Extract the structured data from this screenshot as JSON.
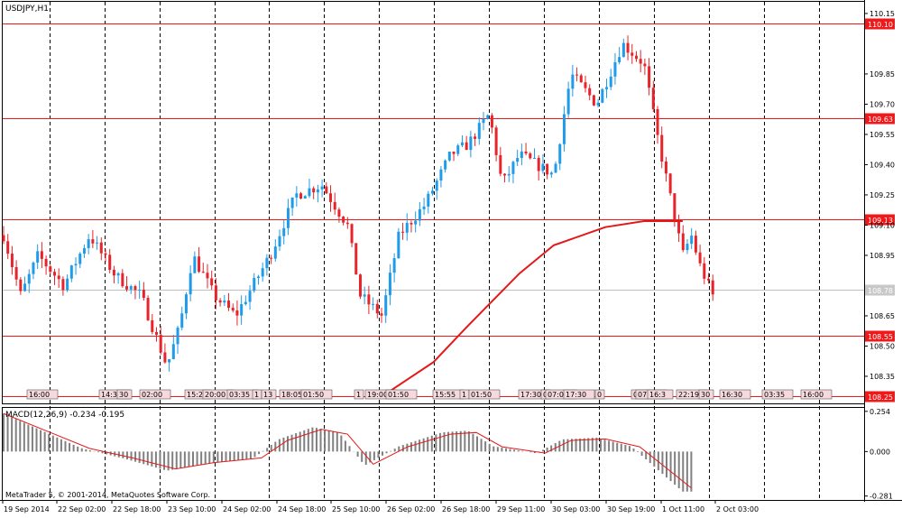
{
  "symbol_label": "USDJPY,H1",
  "macd_label": "MACD(12,26,9) -0.234 -0.195",
  "copyright": "MetaTrader 5, © 2001-2014, MetaQuotes Software Corp.",
  "price_axis": {
    "ticks": [
      "110.15",
      "109.85",
      "109.70",
      "109.55",
      "109.40",
      "109.25",
      "109.10",
      "108.95",
      "108.65",
      "108.50",
      "108.35"
    ]
  },
  "macd_axis": {
    "ticks": [
      "0.254",
      "0.000",
      "-0.281"
    ]
  },
  "time_axis": {
    "labels": [
      "19 Sep 2014",
      "22 Sep 02:00",
      "22 Sep 18:00",
      "23 Sep 10:00",
      "24 Sep 02:00",
      "24 Sep 18:00",
      "25 Sep 10:00",
      "26 Sep 02:00",
      "26 Sep 18:00",
      "29 Sep 11:00",
      "30 Sep 03:00",
      "30 Sep 19:00",
      "1 Oct 11:00",
      "2 Oct 03:00"
    ]
  },
  "horizontal_levels": [
    {
      "label": "110.10",
      "value": 110.1
    },
    {
      "label": "109.63",
      "value": 109.63
    },
    {
      "label": "109.13",
      "value": 109.13
    },
    {
      "label": "108.55",
      "value": 108.55
    },
    {
      "label": "108.25",
      "value": 108.25
    }
  ],
  "current_price_label": "108.78",
  "event_tags": [
    "16:00",
    "14:30",
    "30",
    "02:00",
    "15:2",
    "20:00",
    "03:35",
    "1",
    "13",
    "18:05",
    "01:50",
    "1",
    "19:00",
    "01:50",
    "15:55",
    "1",
    "01:50",
    "17:30",
    "0",
    "07:00",
    "17:30",
    "0",
    "03:",
    "07:00",
    "16:3",
    "22:19",
    "30",
    "16:30",
    "03:35",
    "16:00"
  ],
  "colors": {
    "bull": "#1e9bea",
    "bear": "#e8242a",
    "level_line": "#f01818",
    "ma_line": "#e41818",
    "macd_hist": "#808080",
    "macd_signal": "#e41818",
    "grid": "#000000"
  },
  "chart_data": {
    "type": "candlestick",
    "title": "USDJPY,H1",
    "ylim": [
      108.22,
      110.19
    ],
    "moving_average": {
      "points": [
        [
          0.44,
          108.25
        ],
        [
          0.5,
          108.42
        ],
        [
          0.54,
          108.6
        ],
        [
          0.6,
          108.86
        ],
        [
          0.64,
          109.0
        ],
        [
          0.7,
          109.09
        ],
        [
          0.745,
          109.12
        ],
        [
          0.79,
          109.12
        ]
      ]
    },
    "macd": {
      "ylim": [
        -0.3,
        0.27
      ],
      "signal_points": [
        [
          0.0,
          0.24
        ],
        [
          0.05,
          0.13
        ],
        [
          0.1,
          0.02
        ],
        [
          0.15,
          -0.04
        ],
        [
          0.2,
          -0.11
        ],
        [
          0.245,
          -0.07
        ],
        [
          0.3,
          -0.04
        ],
        [
          0.33,
          0.07
        ],
        [
          0.37,
          0.14
        ],
        [
          0.4,
          0.11
        ],
        [
          0.43,
          -0.08
        ],
        [
          0.47,
          0.03
        ],
        [
          0.52,
          0.11
        ],
        [
          0.55,
          0.12
        ],
        [
          0.58,
          0.03
        ],
        [
          0.63,
          -0.01
        ],
        [
          0.66,
          0.07
        ],
        [
          0.7,
          0.08
        ],
        [
          0.74,
          0.03
        ],
        [
          0.77,
          -0.1
        ],
        [
          0.8,
          -0.23
        ]
      ]
    }
  }
}
